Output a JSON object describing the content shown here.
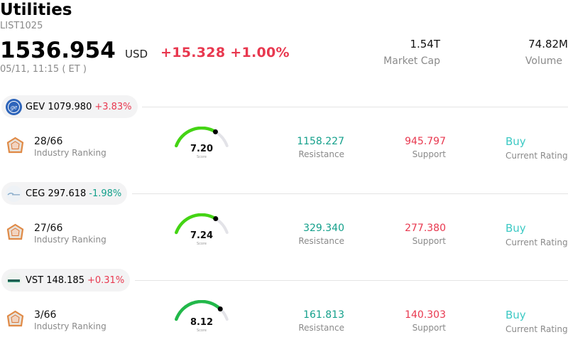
{
  "header": {
    "title": "Utilities",
    "subtitle": "LIST1025",
    "price": "1536.954",
    "currency": "USD",
    "change": "+15.328 +1.00%",
    "datetime": "05/11, 11:15  ( ET )",
    "market_cap_value": "1.54T",
    "market_cap_label": "Market Cap",
    "volume_value": "74.82M",
    "volume_label": "Volume"
  },
  "colors": {
    "up": "#e8384f",
    "down": "#14a08b",
    "rating": "#3cc9c4",
    "gauge_bright": "#44d414",
    "gauge_dark": "#22b84a",
    "gauge_track": "#e3e3e8"
  },
  "stocks": [
    {
      "ticker": "GEV 1079.980",
      "change": "+3.83%",
      "direction": "up",
      "logo_icon": "ge-logo-icon",
      "rank": "28/66",
      "rank_label": "Industry Ranking",
      "score": "7.20",
      "score_value": 7.2,
      "score_caption": "Score",
      "resistance": "1158.227",
      "resistance_label": "Resistance",
      "support": "945.797",
      "support_label": "Support",
      "rating": "Buy",
      "rating_label": "Current Rating"
    },
    {
      "ticker": "CEG 297.618",
      "change": "-1.98%",
      "direction": "down",
      "logo_icon": "constellation-logo-icon",
      "rank": "27/66",
      "rank_label": "Industry Ranking",
      "score": "7.24",
      "score_value": 7.24,
      "score_caption": "Score",
      "resistance": "329.340",
      "resistance_label": "Resistance",
      "support": "277.380",
      "support_label": "Support",
      "rating": "Buy",
      "rating_label": "Current Rating"
    },
    {
      "ticker": "VST 148.185",
      "change": "+0.31%",
      "direction": "up",
      "logo_icon": "vistra-logo-icon",
      "rank": "3/66",
      "rank_label": "Industry Ranking",
      "score": "8.12",
      "score_value": 8.12,
      "score_caption": "Score",
      "resistance": "161.813",
      "resistance_label": "Resistance",
      "support": "140.303",
      "support_label": "Support",
      "rating": "Buy",
      "rating_label": "Current Rating"
    }
  ]
}
